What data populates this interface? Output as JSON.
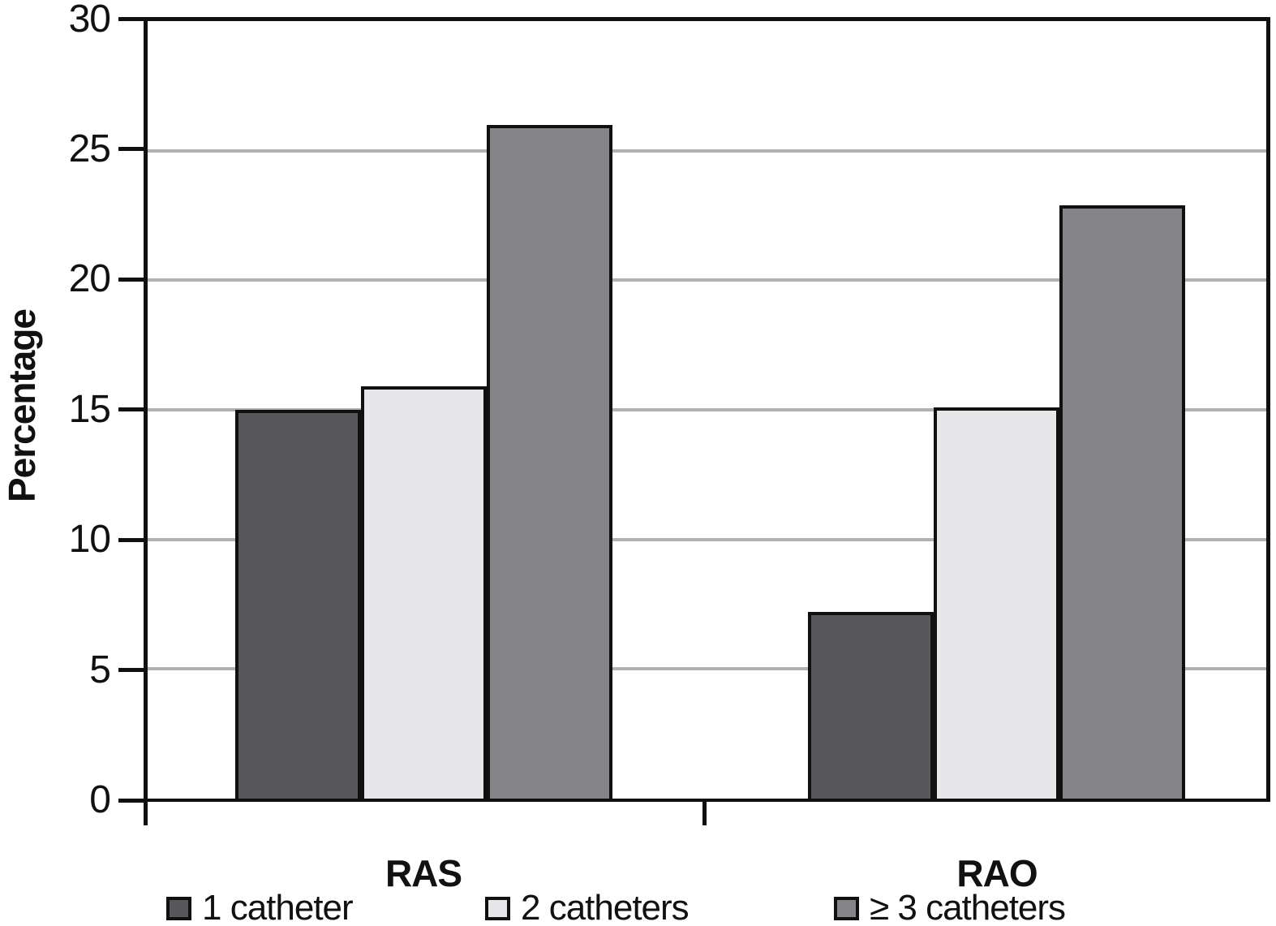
{
  "chart_data": {
    "type": "bar",
    "title": "",
    "xlabel": "",
    "ylabel": "Percentage",
    "categories": [
      "RAS",
      "RAO"
    ],
    "series": [
      {
        "name": "1 catheter",
        "color": "#58585a",
        "values": [
          15.0,
          7.2
        ]
      },
      {
        "name": "2 catheters",
        "color": "#e7e7e9",
        "values": [
          15.9,
          15.1
        ]
      },
      {
        "name": "≥ 3 catheters",
        "color": "#858588",
        "values": [
          26.0,
          22.9
        ]
      }
    ],
    "ylim": [
      0,
      30
    ],
    "yticks": [
      "0",
      "5",
      "10",
      "15",
      "20",
      "25",
      "30"
    ],
    "grid": "horizontal-light-gray",
    "legend_position": "bottom",
    "bar_outline_color": "#101010",
    "gridline_color": "#b1b1b4"
  }
}
